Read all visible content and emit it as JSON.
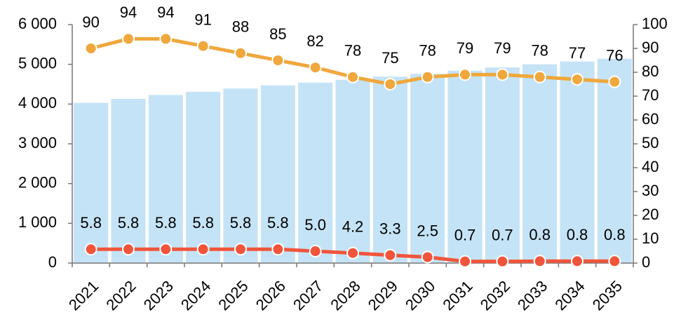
{
  "chart_data": {
    "type": "bar",
    "categories": [
      "2021",
      "2022",
      "2023",
      "2024",
      "2025",
      "2026",
      "2027",
      "2028",
      "2029",
      "2030",
      "2031",
      "2032",
      "2033",
      "2034",
      "2035"
    ],
    "series": [
      {
        "type": "bar",
        "color": "#c5e3f6",
        "values": [
          4030,
          4130,
          4230,
          4310,
          4390,
          4470,
          4540,
          4610,
          4690,
          4760,
          4840,
          4920,
          5000,
          5070,
          5140
        ]
      },
      {
        "type": "line",
        "axis": "y2",
        "color": "#f0a73c",
        "values": [
          90,
          94,
          94,
          91,
          88,
          85,
          82,
          78,
          75,
          78,
          79,
          79,
          78,
          77,
          76
        ]
      },
      {
        "type": "line",
        "axis": "y2",
        "color": "#f0553c",
        "values": [
          5.8,
          5.8,
          5.8,
          5.8,
          5.8,
          5.8,
          5,
          4.2,
          3.3,
          2.5,
          0.7,
          0.7,
          0.8,
          0.8,
          0.8
        ],
        "value_labels": [
          "5.8",
          "5.8",
          "5.8",
          "5.8",
          "5.8",
          "5.8",
          "5.0",
          "4.2",
          "3.3",
          "2.5",
          "0.7",
          "0.7",
          "0.8",
          "0.8",
          "0.8"
        ]
      }
    ],
    "ylim": [
      0,
      6000
    ],
    "yticks": [
      {
        "value": 0,
        "label": "0"
      },
      {
        "value": 1000,
        "label": "1 000"
      },
      {
        "value": 2000,
        "label": "2 000"
      },
      {
        "value": 3000,
        "label": "3 000"
      },
      {
        "value": 4000,
        "label": "4 000"
      },
      {
        "value": 5000,
        "label": "5 000"
      },
      {
        "value": 6000,
        "label": "6 000"
      }
    ],
    "y2lim": [
      0,
      100
    ],
    "y2ticks": [
      0,
      10,
      20,
      30,
      40,
      50,
      60,
      70,
      80,
      90,
      100
    ]
  }
}
